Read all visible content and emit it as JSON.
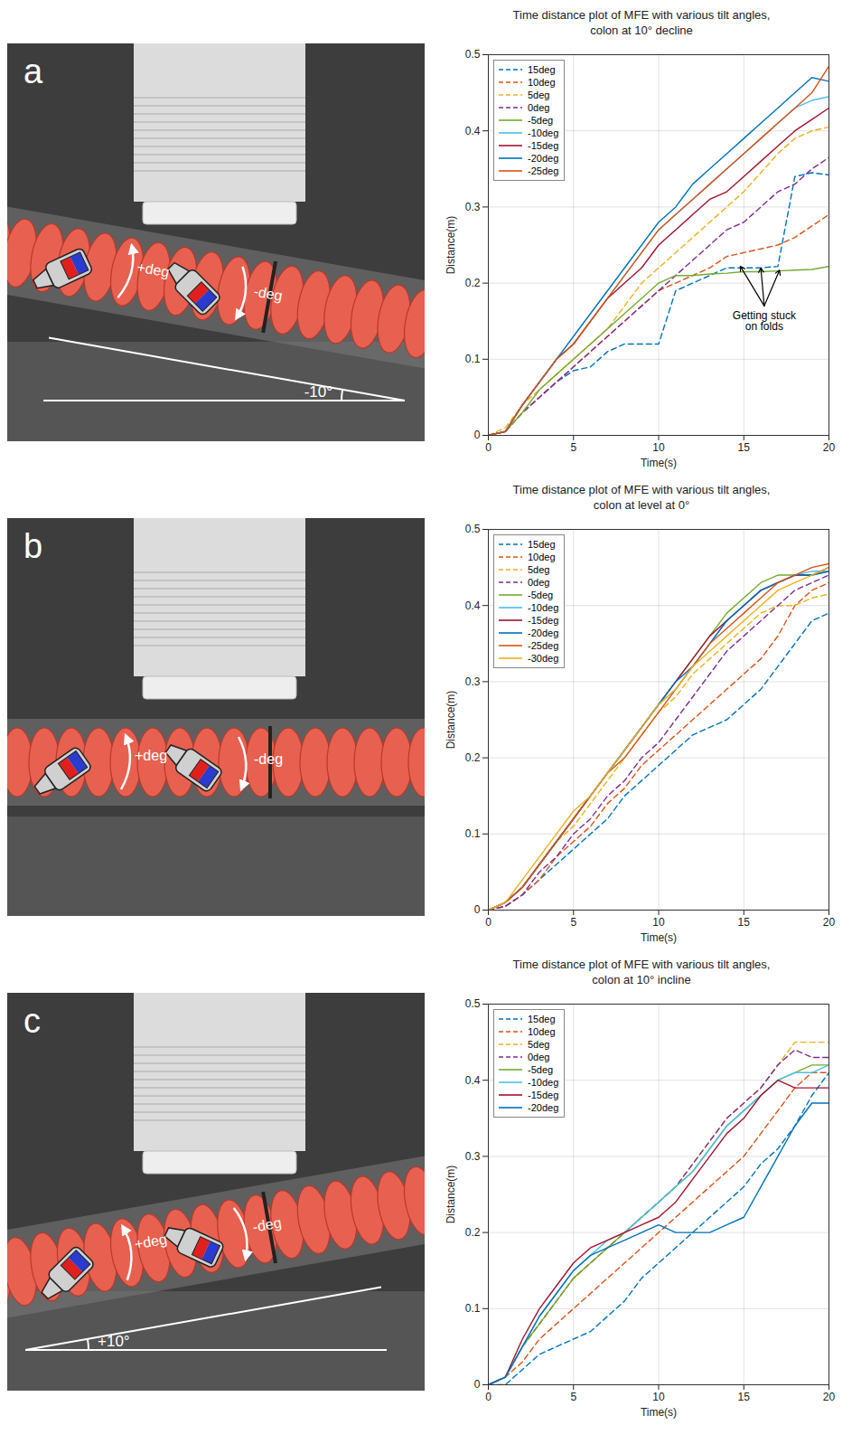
{
  "chart_data": [
    {
      "type": "line",
      "title": "Time distance plot of MFE with various tilt angles,\ncolon at 10° decline",
      "xlabel": "Time(s)",
      "ylabel": "Distance(m)",
      "xlim": [
        0,
        20
      ],
      "xticks": [
        0,
        5,
        10,
        15,
        20
      ],
      "ylim": [
        0,
        0.5
      ],
      "yticks": [
        0,
        0.1,
        0.2,
        0.3,
        0.4,
        0.5
      ],
      "grid": true,
      "legend": "top-left",
      "x": [
        0,
        1,
        2,
        3,
        4,
        5,
        6,
        7,
        8,
        9,
        10,
        11,
        12,
        13,
        14,
        15,
        16,
        17,
        18,
        19,
        20
      ],
      "series": [
        {
          "name": "15deg",
          "color": "#0072BD",
          "line_style": "dashed",
          "values": [
            0,
            0.005,
            0.03,
            0.05,
            0.07,
            0.085,
            0.09,
            0.11,
            0.12,
            0.12,
            0.12,
            0.19,
            0.2,
            0.21,
            0.22,
            0.22,
            0.22,
            0.222,
            0.34,
            0.345,
            0.342
          ]
        },
        {
          "name": "10deg",
          "color": "#D95319",
          "line_style": "dashed",
          "values": [
            0,
            0.005,
            0.03,
            0.05,
            0.07,
            0.09,
            0.11,
            0.13,
            0.15,
            0.17,
            0.19,
            0.2,
            0.21,
            0.22,
            0.235,
            0.24,
            0.245,
            0.25,
            0.26,
            0.275,
            0.29
          ]
        },
        {
          "name": "5deg",
          "color": "#EDB120",
          "line_style": "dashed",
          "values": [
            0,
            0.01,
            0.04,
            0.06,
            0.08,
            0.1,
            0.12,
            0.14,
            0.17,
            0.2,
            0.22,
            0.24,
            0.26,
            0.28,
            0.3,
            0.32,
            0.345,
            0.37,
            0.39,
            0.4,
            0.405
          ]
        },
        {
          "name": "0deg",
          "color": "#7E2F8E",
          "line_style": "dashed",
          "values": [
            0,
            0.005,
            0.03,
            0.05,
            0.07,
            0.09,
            0.11,
            0.13,
            0.15,
            0.17,
            0.19,
            0.21,
            0.23,
            0.25,
            0.27,
            0.28,
            0.3,
            0.32,
            0.33,
            0.35,
            0.365
          ]
        },
        {
          "name": "-5deg",
          "color": "#77AC30",
          "line_style": "solid",
          "values": [
            0,
            0.005,
            0.03,
            0.06,
            0.08,
            0.1,
            0.12,
            0.14,
            0.16,
            0.18,
            0.2,
            0.21,
            0.21,
            0.212,
            0.213,
            0.215,
            0.215,
            0.216,
            0.217,
            0.218,
            0.222
          ]
        },
        {
          "name": "-10deg",
          "color": "#4DBEEE",
          "line_style": "solid",
          "values": [
            0,
            0.005,
            0.04,
            0.07,
            0.1,
            0.12,
            0.15,
            0.18,
            0.21,
            0.24,
            0.27,
            0.29,
            0.31,
            0.33,
            0.35,
            0.37,
            0.39,
            0.41,
            0.43,
            0.44,
            0.445
          ]
        },
        {
          "name": "-15deg",
          "color": "#A2142F",
          "line_style": "solid",
          "values": [
            0,
            0.005,
            0.04,
            0.07,
            0.1,
            0.12,
            0.15,
            0.18,
            0.2,
            0.22,
            0.25,
            0.27,
            0.29,
            0.31,
            0.32,
            0.34,
            0.36,
            0.38,
            0.4,
            0.415,
            0.43
          ]
        },
        {
          "name": "-20deg",
          "color": "#0072BD",
          "line_style": "solid",
          "values": [
            0,
            0.005,
            0.04,
            0.07,
            0.1,
            0.13,
            0.16,
            0.19,
            0.22,
            0.25,
            0.28,
            0.3,
            0.33,
            0.35,
            0.37,
            0.39,
            0.41,
            0.43,
            0.45,
            0.47,
            0.465
          ]
        },
        {
          "name": "-25deg",
          "color": "#D95319",
          "line_style": "solid",
          "values": [
            0,
            0.005,
            0.04,
            0.07,
            0.1,
            0.12,
            0.15,
            0.18,
            0.21,
            0.24,
            0.27,
            0.29,
            0.31,
            0.33,
            0.35,
            0.37,
            0.39,
            0.41,
            0.43,
            0.45,
            0.485
          ]
        }
      ],
      "annotations": [
        {
          "text": "Getting stuck\non folds",
          "x": 16.2,
          "y": 0.17,
          "points": [
            [
              14.8,
              0.222
            ],
            [
              16,
              0.22
            ],
            [
              17.1,
              0.217
            ]
          ]
        }
      ]
    },
    {
      "type": "line",
      "title": "Time distance plot of MFE with various tilt angles,\ncolon at level at 0°",
      "xlabel": "Time(s)",
      "ylabel": "Distance(m)",
      "xlim": [
        0,
        20
      ],
      "xticks": [
        0,
        5,
        10,
        15,
        20
      ],
      "ylim": [
        0,
        0.5
      ],
      "yticks": [
        0,
        0.1,
        0.2,
        0.3,
        0.4,
        0.5
      ],
      "grid": true,
      "legend": "top-left",
      "x": [
        0,
        1,
        2,
        3,
        4,
        5,
        6,
        7,
        8,
        9,
        10,
        11,
        12,
        13,
        14,
        15,
        16,
        17,
        18,
        19,
        20
      ],
      "series": [
        {
          "name": "15deg",
          "color": "#0072BD",
          "line_style": "dashed",
          "values": [
            0,
            0.005,
            0.02,
            0.04,
            0.06,
            0.08,
            0.1,
            0.12,
            0.15,
            0.17,
            0.19,
            0.21,
            0.23,
            0.24,
            0.25,
            0.27,
            0.29,
            0.32,
            0.35,
            0.38,
            0.39
          ]
        },
        {
          "name": "10deg",
          "color": "#D95319",
          "line_style": "dashed",
          "values": [
            0,
            0.005,
            0.02,
            0.04,
            0.07,
            0.09,
            0.11,
            0.14,
            0.16,
            0.19,
            0.21,
            0.23,
            0.25,
            0.27,
            0.29,
            0.31,
            0.33,
            0.36,
            0.4,
            0.42,
            0.43
          ]
        },
        {
          "name": "5deg",
          "color": "#EDB120",
          "line_style": "dashed",
          "values": [
            0,
            0.01,
            0.03,
            0.06,
            0.09,
            0.11,
            0.14,
            0.17,
            0.2,
            0.23,
            0.26,
            0.28,
            0.31,
            0.33,
            0.35,
            0.37,
            0.39,
            0.4,
            0.4,
            0.41,
            0.415
          ]
        },
        {
          "name": "0deg",
          "color": "#7E2F8E",
          "line_style": "dashed",
          "values": [
            0,
            0.005,
            0.02,
            0.05,
            0.07,
            0.1,
            0.12,
            0.15,
            0.17,
            0.2,
            0.22,
            0.25,
            0.28,
            0.31,
            0.34,
            0.36,
            0.38,
            0.4,
            0.42,
            0.43,
            0.44
          ]
        },
        {
          "name": "-5deg",
          "color": "#77AC30",
          "line_style": "solid",
          "values": [
            0,
            0.01,
            0.03,
            0.06,
            0.09,
            0.12,
            0.15,
            0.18,
            0.21,
            0.24,
            0.27,
            0.3,
            0.33,
            0.36,
            0.39,
            0.41,
            0.43,
            0.44,
            0.44,
            0.44,
            0.445
          ]
        },
        {
          "name": "-10deg",
          "color": "#4DBEEE",
          "line_style": "solid",
          "values": [
            0,
            0.01,
            0.03,
            0.06,
            0.09,
            0.12,
            0.15,
            0.18,
            0.21,
            0.24,
            0.27,
            0.29,
            0.32,
            0.35,
            0.38,
            0.4,
            0.42,
            0.43,
            0.44,
            0.445,
            0.445
          ]
        },
        {
          "name": "-15deg",
          "color": "#A2142F",
          "line_style": "solid",
          "values": [
            0,
            0.01,
            0.03,
            0.06,
            0.09,
            0.12,
            0.15,
            0.18,
            0.21,
            0.24,
            0.27,
            0.3,
            0.33,
            0.36,
            0.38,
            0.4,
            0.42,
            0.43,
            0.44,
            0.44,
            0.45
          ]
        },
        {
          "name": "-20deg",
          "color": "#0072BD",
          "line_style": "solid",
          "values": [
            0,
            0.01,
            0.03,
            0.06,
            0.09,
            0.12,
            0.15,
            0.18,
            0.21,
            0.24,
            0.27,
            0.3,
            0.32,
            0.35,
            0.38,
            0.4,
            0.42,
            0.43,
            0.44,
            0.44,
            0.445
          ]
        },
        {
          "name": "-25deg",
          "color": "#D95319",
          "line_style": "solid",
          "values": [
            0,
            0.01,
            0.03,
            0.06,
            0.09,
            0.12,
            0.15,
            0.18,
            0.2,
            0.23,
            0.26,
            0.29,
            0.32,
            0.35,
            0.37,
            0.39,
            0.41,
            0.43,
            0.44,
            0.45,
            0.455
          ]
        },
        {
          "name": "-30deg",
          "color": "#EDB120",
          "line_style": "solid",
          "values": [
            0,
            0.01,
            0.04,
            0.07,
            0.1,
            0.13,
            0.15,
            0.18,
            0.21,
            0.24,
            0.27,
            0.29,
            0.32,
            0.34,
            0.36,
            0.38,
            0.4,
            0.42,
            0.43,
            0.44,
            0.45
          ]
        }
      ]
    },
    {
      "type": "line",
      "title": "Time distance plot of MFE with various tilt angles,\ncolon at 10° incline",
      "xlabel": "Time(s)",
      "ylabel": "Distance(m)",
      "xlim": [
        0,
        20
      ],
      "xticks": [
        0,
        5,
        10,
        15,
        20
      ],
      "ylim": [
        0,
        0.5
      ],
      "yticks": [
        0,
        0.1,
        0.2,
        0.3,
        0.4,
        0.5
      ],
      "grid": true,
      "legend": "top-left",
      "x": [
        0,
        1,
        2,
        3,
        4,
        5,
        6,
        7,
        8,
        9,
        10,
        11,
        12,
        13,
        14,
        15,
        16,
        17,
        18,
        19,
        20
      ],
      "series": [
        {
          "name": "15deg",
          "color": "#0072BD",
          "line_style": "dashed",
          "values": [
            0,
            0,
            0.02,
            0.04,
            0.05,
            0.06,
            0.07,
            0.09,
            0.11,
            0.14,
            0.16,
            0.18,
            0.2,
            0.22,
            0.24,
            0.26,
            0.29,
            0.31,
            0.34,
            0.38,
            0.41
          ]
        },
        {
          "name": "10deg",
          "color": "#D95319",
          "line_style": "dashed",
          "values": [
            0,
            0.01,
            0.03,
            0.06,
            0.08,
            0.1,
            0.12,
            0.14,
            0.16,
            0.18,
            0.2,
            0.22,
            0.24,
            0.26,
            0.28,
            0.3,
            0.33,
            0.36,
            0.39,
            0.41,
            0.41
          ]
        },
        {
          "name": "5deg",
          "color": "#EDB120",
          "line_style": "dashed",
          "values": [
            0,
            0.01,
            0.05,
            0.08,
            0.11,
            0.14,
            0.16,
            0.18,
            0.2,
            0.22,
            0.24,
            0.26,
            0.29,
            0.32,
            0.35,
            0.37,
            0.39,
            0.42,
            0.45,
            0.45,
            0.45
          ]
        },
        {
          "name": "0deg",
          "color": "#7E2F8E",
          "line_style": "dashed",
          "values": [
            0,
            0.01,
            0.05,
            0.08,
            0.11,
            0.14,
            0.16,
            0.18,
            0.2,
            0.22,
            0.24,
            0.26,
            0.29,
            0.32,
            0.35,
            0.37,
            0.39,
            0.42,
            0.44,
            0.43,
            0.43
          ]
        },
        {
          "name": "-5deg",
          "color": "#77AC30",
          "line_style": "solid",
          "values": [
            0,
            0.01,
            0.05,
            0.08,
            0.11,
            0.14,
            0.16,
            0.18,
            0.2,
            0.22,
            0.24,
            0.26,
            0.28,
            0.31,
            0.34,
            0.36,
            0.38,
            0.4,
            0.41,
            0.42,
            0.42
          ]
        },
        {
          "name": "-10deg",
          "color": "#4DBEEE",
          "line_style": "solid",
          "values": [
            0,
            0.01,
            0.05,
            0.09,
            0.12,
            0.15,
            0.17,
            0.19,
            0.2,
            0.22,
            0.24,
            0.26,
            0.28,
            0.31,
            0.34,
            0.36,
            0.38,
            0.4,
            0.41,
            0.41,
            0.42
          ]
        },
        {
          "name": "-15deg",
          "color": "#A2142F",
          "line_style": "solid",
          "values": [
            0,
            0.01,
            0.06,
            0.1,
            0.13,
            0.16,
            0.18,
            0.19,
            0.2,
            0.21,
            0.22,
            0.24,
            0.27,
            0.3,
            0.33,
            0.35,
            0.38,
            0.4,
            0.39,
            0.39,
            0.39
          ]
        },
        {
          "name": "-20deg",
          "color": "#0072BD",
          "line_style": "solid",
          "values": [
            0,
            0.01,
            0.05,
            0.09,
            0.12,
            0.15,
            0.17,
            0.18,
            0.19,
            0.2,
            0.21,
            0.2,
            0.2,
            0.2,
            0.21,
            0.22,
            0.26,
            0.3,
            0.34,
            0.37,
            0.37
          ]
        }
      ]
    }
  ],
  "photos": [
    {
      "letter": "a",
      "labels": [
        "+deg",
        "-deg"
      ],
      "tilt": {
        "value": -10,
        "label": "-10°"
      }
    },
    {
      "letter": "b",
      "labels": [
        "+deg",
        "-deg"
      ]
    },
    {
      "letter": "c",
      "labels": [
        "+deg",
        "-deg"
      ],
      "tilt": {
        "value": 10,
        "label": "+10°"
      }
    }
  ]
}
